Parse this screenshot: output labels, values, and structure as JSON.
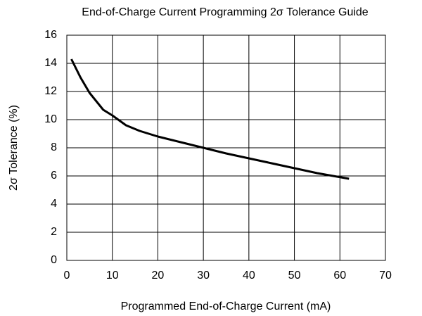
{
  "chart_data": {
    "type": "line",
    "title": "End-of-Charge Current Programming 2σ Tolerance Guide",
    "x_label": "Programmed End-of-Charge Current (mA)",
    "y_label": "2σ Tolerance (%)",
    "x": [
      1,
      3,
      5,
      8,
      10,
      13,
      16,
      20,
      25,
      30,
      35,
      40,
      45,
      50,
      55,
      62
    ],
    "series": [
      {
        "name": "2σ Tolerance",
        "color": "#000000",
        "values": [
          14.3,
          13.0,
          11.9,
          10.7,
          10.3,
          9.6,
          9.2,
          8.8,
          8.4,
          8.0,
          7.6,
          7.25,
          6.9,
          6.55,
          6.2,
          5.8
        ]
      }
    ],
    "xlim": [
      0,
      70
    ],
    "xticks": [
      0,
      10,
      20,
      30,
      40,
      50,
      60,
      70
    ],
    "ylim": [
      0,
      16
    ],
    "yticks": [
      0,
      2,
      4,
      6,
      8,
      10,
      12,
      14,
      16
    ],
    "grid": true
  }
}
